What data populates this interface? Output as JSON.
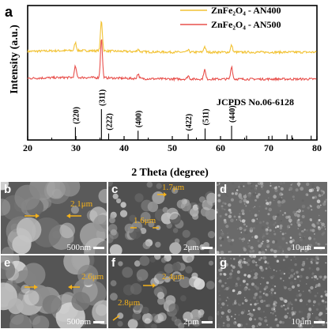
{
  "figure_label": "a",
  "chart_data": {
    "type": "line",
    "xlabel": "2 Theta (degree)",
    "ylabel": "Intensity (a.u.)",
    "xlim": [
      20,
      80
    ],
    "x_ticks": [
      "20",
      "30",
      "40",
      "50",
      "60",
      "70",
      "80"
    ],
    "grid": false,
    "legend_position": "top-right",
    "series": [
      {
        "name": "ZnFe₂O₄ - AN400",
        "color": "#f2c233",
        "offset": 1.0,
        "peaks": [
          [
            29.9,
            0.25
          ],
          [
            35.3,
            0.95
          ],
          [
            42.9,
            0.08
          ],
          [
            53.3,
            0.06
          ],
          [
            56.7,
            0.18
          ],
          [
            62.3,
            0.22
          ]
        ]
      },
      {
        "name": "ZnFe₂O₄ - AN500",
        "color": "#e8504c",
        "offset": 0.0,
        "peaks": [
          [
            29.9,
            0.35
          ],
          [
            35.3,
            1.25
          ],
          [
            42.9,
            0.15
          ],
          [
            53.3,
            0.1
          ],
          [
            56.7,
            0.3
          ],
          [
            62.3,
            0.4
          ]
        ]
      }
    ],
    "reference": {
      "label": "JCPDS No.06-6128",
      "lines": [
        {
          "x": 29.9,
          "h": 0.35,
          "hkl": "(220)"
        },
        {
          "x": 35.3,
          "h": 1.0,
          "hkl": "(311)"
        },
        {
          "x": 36.8,
          "h": 0.12,
          "hkl": "(222)"
        },
        {
          "x": 42.9,
          "h": 0.22,
          "hkl": "(400)"
        },
        {
          "x": 53.3,
          "h": 0.1,
          "hkl": "(422)"
        },
        {
          "x": 56.8,
          "h": 0.3,
          "hkl": "(511)"
        },
        {
          "x": 62.3,
          "h": 0.4,
          "hkl": "(440)"
        },
        {
          "x": 65.4,
          "h": 0.04,
          "hkl": ""
        },
        {
          "x": 70.7,
          "h": 0.04,
          "hkl": ""
        },
        {
          "x": 73.8,
          "h": 0.08,
          "hkl": ""
        },
        {
          "x": 74.8,
          "h": 0.05,
          "hkl": ""
        },
        {
          "x": 78.8,
          "h": 0.04,
          "hkl": ""
        }
      ]
    }
  },
  "panels": [
    {
      "letter": "b",
      "scale": "500nm",
      "annotations": [
        "2.1μm"
      ],
      "tone": "#5a5a5a"
    },
    {
      "letter": "c",
      "scale": "2μm",
      "annotations": [
        "1.7μm",
        "1.6μm"
      ],
      "tone": "#505050"
    },
    {
      "letter": "d",
      "scale": "10μm",
      "annotations": [],
      "tone": "#6a6a6a"
    },
    {
      "letter": "e",
      "scale": "500nm",
      "annotations": [
        "2.6μm"
      ],
      "tone": "#555555"
    },
    {
      "letter": "f",
      "scale": "2μm",
      "annotations": [
        "2.4μm",
        "2.8μm"
      ],
      "tone": "#4a4a4a"
    },
    {
      "letter": "g",
      "scale": "10μm",
      "annotations": [],
      "tone": "#5e5e5e"
    }
  ]
}
